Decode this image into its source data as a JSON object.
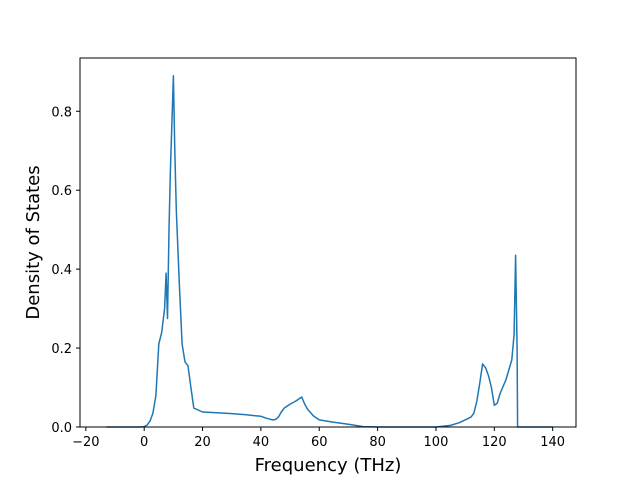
{
  "chart_data": {
    "type": "line",
    "title": "",
    "xlabel": "Frequency (THz)",
    "ylabel": "Density of States",
    "xlim": [
      -22,
      148
    ],
    "ylim": [
      0,
      0.935
    ],
    "grid": false,
    "xticks": [
      -20,
      0,
      20,
      40,
      60,
      80,
      100,
      120,
      140
    ],
    "xtick_labels": [
      "−20",
      "0",
      "20",
      "40",
      "60",
      "80",
      "100",
      "120",
      "140"
    ],
    "yticks": [
      0.0,
      0.2,
      0.4,
      0.6,
      0.8
    ],
    "ytick_labels": [
      "0.0",
      "0.2",
      "0.4",
      "0.6",
      "0.8"
    ],
    "series": [
      {
        "color": "#1f77b4",
        "x": [
          -13,
          -8,
          -4,
          -1,
          0,
          1,
          2,
          3,
          4,
          5,
          6,
          7,
          7.5,
          8,
          8.5,
          9,
          10,
          10.5,
          11,
          12,
          13,
          14,
          15,
          16,
          17,
          20,
          25,
          30,
          35,
          40,
          42,
          44,
          45,
          46,
          47,
          48,
          50,
          52,
          54,
          55,
          56,
          58,
          60,
          65,
          70,
          75,
          80,
          90,
          100,
          105,
          108,
          110,
          112,
          113,
          114,
          115,
          116,
          117,
          118,
          119,
          120,
          121,
          122,
          124,
          126,
          126.8,
          127.3,
          127.8,
          128,
          130,
          135,
          140
        ],
        "y": [
          0,
          0,
          0,
          0,
          0.001,
          0.005,
          0.015,
          0.035,
          0.08,
          0.21,
          0.24,
          0.3,
          0.39,
          0.275,
          0.5,
          0.65,
          0.89,
          0.7,
          0.55,
          0.37,
          0.21,
          0.165,
          0.155,
          0.1,
          0.048,
          0.038,
          0.036,
          0.034,
          0.031,
          0.027,
          0.022,
          0.018,
          0.019,
          0.025,
          0.038,
          0.048,
          0.058,
          0.066,
          0.076,
          0.058,
          0.045,
          0.028,
          0.018,
          0.012,
          0.007,
          0.001,
          0,
          0,
          0,
          0.004,
          0.011,
          0.018,
          0.025,
          0.035,
          0.065,
          0.11,
          0.16,
          0.15,
          0.13,
          0.1,
          0.055,
          0.06,
          0.085,
          0.12,
          0.17,
          0.235,
          0.435,
          0.2,
          0,
          0,
          0,
          0
        ]
      }
    ]
  }
}
